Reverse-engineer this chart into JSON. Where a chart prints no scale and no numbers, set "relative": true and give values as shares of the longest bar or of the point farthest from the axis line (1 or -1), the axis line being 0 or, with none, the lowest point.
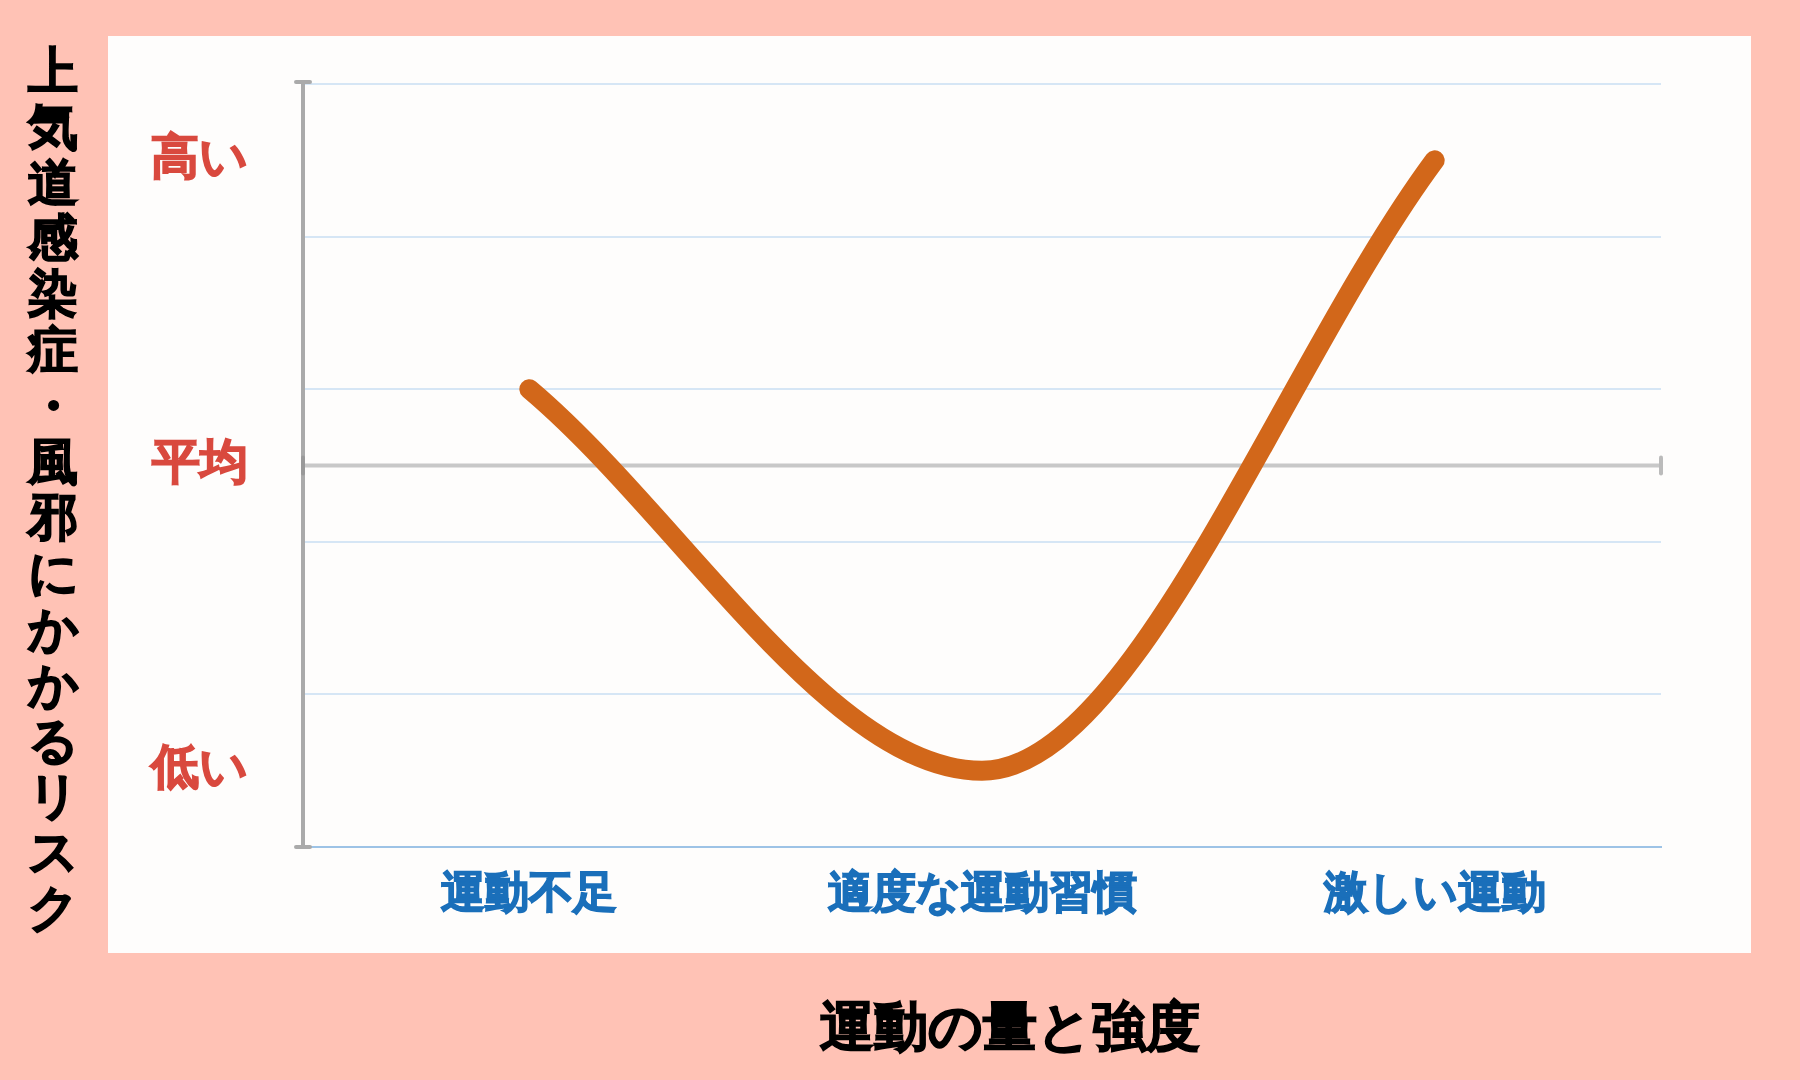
{
  "chart_data": {
    "type": "line",
    "relative": true,
    "categories": [
      "運動不足",
      "適度な運動習慣",
      "激しい運動"
    ],
    "series": [
      {
        "color": "#d2671a",
        "values": [
          0.25,
          -1,
          1
        ]
      }
    ],
    "xlabel": "運動の量と強度",
    "ylabel": "上気道感染症・風邪にかかるリスク",
    "annotations": [
      "高い",
      "低い"
    ],
    "grid": "y",
    "ref_lines": [
      {
        "axis": "y",
        "value": 0,
        "label": "平均",
        "color": "#c8c8c8"
      }
    ],
    "marker": "none",
    "line_style": "solid",
    "legend": false
  }
}
